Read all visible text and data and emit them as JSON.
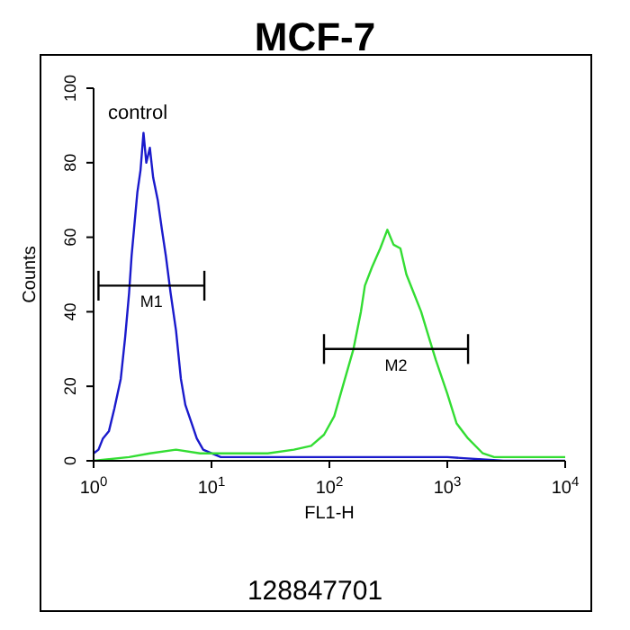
{
  "chart_data": {
    "type": "line",
    "title": "MCF-7",
    "xlabel": "FL1-H",
    "ylabel": "Counts",
    "log": "x",
    "xlim": [
      1,
      10000
    ],
    "xticks": [
      {
        "value": 1,
        "label": "10$^{0}$"
      },
      {
        "value": 10,
        "label": "10$^{1}$"
      },
      {
        "value": 100,
        "label": "10$^{2}$"
      },
      {
        "value": 1000,
        "label": "10$^{3}$"
      },
      {
        "value": 10000,
        "label": "10$^{4}$"
      }
    ],
    "ylim": [
      0,
      100
    ],
    "yticks": [
      0,
      20,
      40,
      60,
      80,
      100
    ],
    "series": [
      {
        "color": "#1a1acc",
        "x": [
          1,
          1.1,
          1.2,
          1.35,
          1.5,
          1.7,
          1.85,
          2,
          2.1,
          2.2,
          2.35,
          2.5,
          2.65,
          2.8,
          3,
          3.2,
          3.5,
          3.8,
          4.1,
          4.5,
          5,
          5.5,
          6,
          6.8,
          7.5,
          8.5,
          10,
          12,
          20,
          50,
          100,
          300,
          1000,
          3000,
          10000
        ],
        "values": [
          2,
          3,
          6,
          8,
          14,
          22,
          33,
          45,
          55,
          62,
          72,
          78,
          88,
          80,
          84,
          76,
          70,
          62,
          55,
          45,
          35,
          22,
          15,
          10,
          6,
          3,
          2,
          1,
          1,
          1,
          1,
          1,
          1,
          0,
          0
        ]
      },
      {
        "color": "#33dd33",
        "x": [
          1,
          2,
          3,
          5,
          8,
          15,
          30,
          50,
          70,
          90,
          110,
          130,
          160,
          185,
          200,
          230,
          270,
          310,
          350,
          400,
          450,
          520,
          600,
          700,
          800,
          1000,
          1200,
          1500,
          2000,
          2500,
          5000,
          10000
        ],
        "values": [
          0,
          1,
          2,
          3,
          2,
          2,
          2,
          3,
          4,
          7,
          12,
          20,
          30,
          40,
          47,
          52,
          57,
          62,
          58,
          57,
          50,
          45,
          40,
          33,
          27,
          18,
          10,
          6,
          2,
          1,
          1,
          1
        ]
      },
      {
        "name": "M1",
        "color": "#000000",
        "x": [
          1.1,
          8.7
        ],
        "values": [
          47,
          47
        ],
        "errors": [
          4,
          4
        ]
      },
      {
        "name": "M2",
        "color": "#000000",
        "x": [
          90,
          1500
        ],
        "values": [
          30,
          30
        ],
        "errors": [
          4,
          4
        ]
      }
    ],
    "annotations": [
      "control",
      "128847701"
    ]
  }
}
